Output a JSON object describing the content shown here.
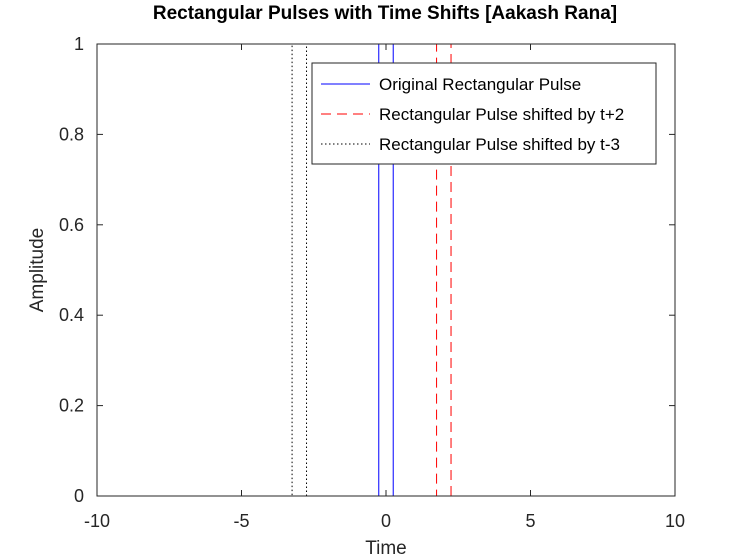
{
  "chart_data": {
    "type": "line",
    "title": "Rectangular Pulses with Time Shifts [Aakash Rana]",
    "xlabel": "Time",
    "ylabel": "Amplitude",
    "xlim": [
      -10,
      10
    ],
    "ylim": [
      0,
      1
    ],
    "x_ticks": [
      -10,
      -5,
      0,
      5,
      10
    ],
    "y_ticks": [
      0,
      0.2,
      0.4,
      0.6,
      0.8,
      1
    ],
    "x_tick_labels": [
      "-10",
      "-5",
      "0",
      "5",
      "10"
    ],
    "y_tick_labels": [
      "0",
      "0.2",
      "0.4",
      "0.6",
      "0.8",
      "1"
    ],
    "grid": false,
    "legend_position": "top-right",
    "series": [
      {
        "name": "Original Rectangular Pulse",
        "color": "#0000ff",
        "dash": "solid",
        "x": [
          -10,
          -0.25,
          -0.25,
          0.25,
          0.25,
          10
        ],
        "y": [
          0,
          0,
          1,
          1,
          0,
          0
        ]
      },
      {
        "name": "Rectangular Pulse shifted by t+2",
        "color": "#ff0000",
        "dash": "dashed",
        "x": [
          -10,
          1.75,
          1.75,
          2.25,
          2.25,
          10
        ],
        "y": [
          0,
          0,
          1,
          1,
          0,
          0
        ]
      },
      {
        "name": "Rectangular Pulse shifted by t-3",
        "color": "#000000",
        "dash": "dotted",
        "x": [
          -10,
          -3.25,
          -3.25,
          -2.75,
          -2.75,
          10
        ],
        "y": [
          0,
          0,
          1,
          1,
          0,
          0
        ]
      }
    ]
  }
}
